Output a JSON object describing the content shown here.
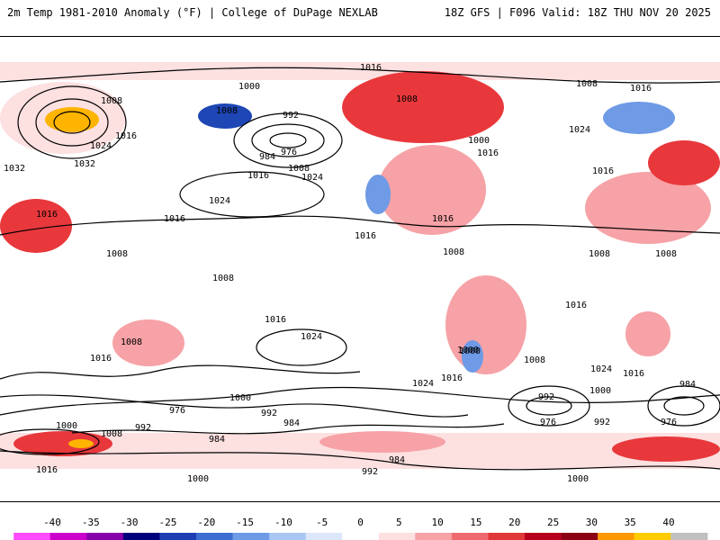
{
  "header": {
    "title_left": "2m Temp 1981-2010 Anomaly (°F) | College of DuPage NEXLAB",
    "title_right": "18Z GFS | F096 Valid: 18Z THU NOV 20 2025"
  },
  "map": {
    "field": "2m temperature anomaly (°F)",
    "contours_field": "sea-level pressure (mb)",
    "pressure_labels": [
      "1016",
      "1008",
      "1000",
      "1008",
      "992",
      "984",
      "976",
      "1008",
      "1016",
      "1024",
      "1016",
      "1024",
      "1032",
      "1032",
      "1016",
      "1024",
      "1016",
      "1008",
      "1016",
      "1008",
      "1008",
      "1016",
      "1000",
      "1016",
      "1008",
      "1016",
      "1024",
      "1016",
      "1008",
      "1008",
      "1000",
      "1016",
      "1024",
      "1008",
      "1016",
      "1000",
      "1008",
      "1024",
      "1016",
      "1008",
      "1016",
      "992",
      "976",
      "1000",
      "976",
      "1024",
      "992",
      "984",
      "1000",
      "992",
      "1000",
      "976",
      "984",
      "984",
      "992",
      "1000",
      "1016",
      "1008",
      "992",
      "1000",
      "1016",
      "984"
    ],
    "colors": {
      "strong_warm": "#c8001e",
      "warm": "#e8383c",
      "mild_warm": "#f6a2a6",
      "slight_warm": "#fde0e0",
      "slight_cool": "#c8dcf8",
      "cool": "#6e9ae6",
      "strong_cool": "#1e46b4",
      "extreme_warm": "#ffb400"
    }
  },
  "colorbar": {
    "ticks": [
      "-40",
      "-35",
      "-30",
      "-25",
      "-20",
      "-15",
      "-10",
      "-5",
      "0",
      "5",
      "10",
      "15",
      "20",
      "25",
      "30",
      "35",
      "40"
    ],
    "colors": [
      "#ff4cff",
      "#cc00cc",
      "#8800aa",
      "#00007d",
      "#1e3cb4",
      "#3c6ed2",
      "#6e9ae6",
      "#a8c6f2",
      "#dce8fa",
      "#ffffff",
      "#fde0e0",
      "#f6a2a6",
      "#ee6a6e",
      "#e03838",
      "#b8001e",
      "#8c0014",
      "#ff9900",
      "#ffcc00",
      "#c0c0c0"
    ]
  }
}
